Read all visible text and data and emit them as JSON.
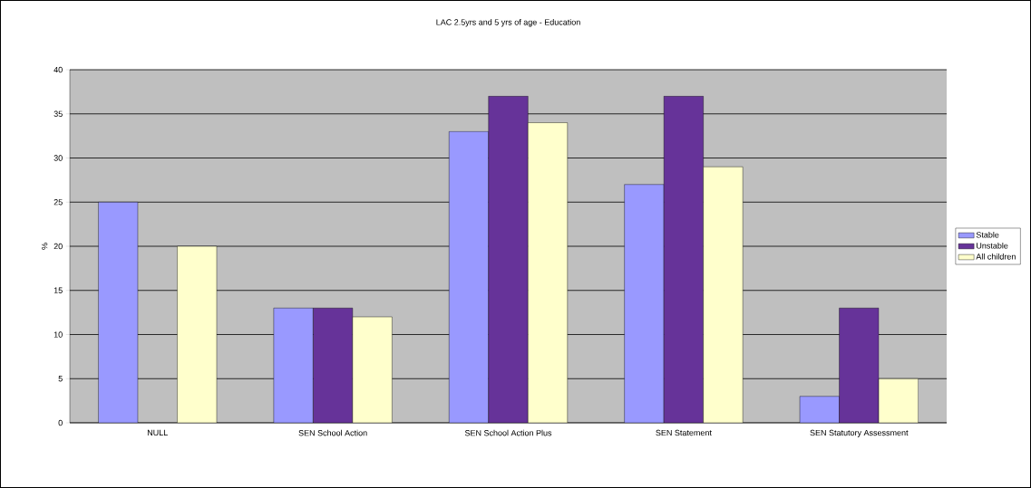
{
  "chart_data": {
    "type": "bar",
    "title": "LAC 2.5yrs and 5 yrs of age  - Education",
    "ylabel": "%",
    "categories": [
      "NULL",
      "SEN School Action",
      "SEN School Action Plus",
      "SEN Statement",
      "SEN Statutory Assessment"
    ],
    "series": [
      {
        "name": "Stable",
        "color": "#9999ff",
        "values": [
          25,
          13,
          33,
          27,
          3
        ]
      },
      {
        "name": "Unstable",
        "color": "#663399",
        "values": [
          null,
          13,
          37,
          37,
          13
        ]
      },
      {
        "name": "All children",
        "color": "#ffffcc",
        "values": [
          20,
          12,
          34,
          29,
          5
        ]
      }
    ],
    "ylim": [
      0,
      40
    ],
    "yticks": [
      0,
      5,
      10,
      15,
      20,
      25,
      30,
      35,
      40
    ],
    "grid": "y",
    "legend": "right"
  }
}
